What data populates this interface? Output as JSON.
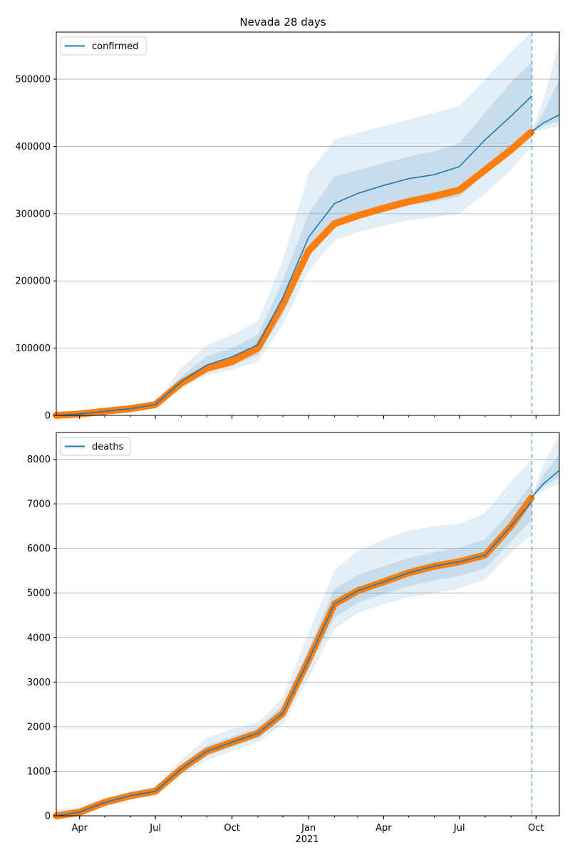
{
  "chart_data": {
    "type": "line",
    "title": "Nevada 28 days",
    "x_tick_labels": [
      "Apr",
      "Jul",
      "Oct",
      "Jan",
      "Apr",
      "Jul",
      "Oct"
    ],
    "x_tick_dates": [
      "2020-04-01",
      "2020-07-01",
      "2020-10-01",
      "2021-01-01",
      "2021-04-01",
      "2021-07-01",
      "2021-10-01"
    ],
    "x_year_label": "2021",
    "xlim": [
      "2020-03-04",
      "2021-10-29"
    ],
    "forecast_start": "2021-09-26",
    "grid": "horizontal",
    "legend_position": "top-left",
    "colors": {
      "model": "#1f77b4",
      "observed": "#ff7f0e",
      "band": "#1f77b4"
    },
    "panels": [
      {
        "series": [
          {
            "name": "confirmed",
            "kind": "model-line"
          },
          {
            "kind": "observed-points"
          }
        ],
        "ylim": [
          0,
          570000
        ],
        "y_ticks": [
          "0",
          "100000",
          "200000",
          "300000",
          "400000",
          "500000"
        ],
        "x": [
          "2020-03-04",
          "2020-04-01",
          "2020-05-01",
          "2020-06-01",
          "2020-07-01",
          "2020-08-01",
          "2020-09-01",
          "2020-10-01",
          "2020-11-01",
          "2020-12-01",
          "2021-01-01",
          "2021-02-01",
          "2021-03-01",
          "2021-04-01",
          "2021-05-01",
          "2021-06-01",
          "2021-07-01",
          "2021-08-01",
          "2021-09-01",
          "2021-09-26"
        ],
        "model": [
          0,
          2000,
          6000,
          10000,
          16000,
          50000,
          75000,
          87000,
          105000,
          175000,
          265000,
          315000,
          330000,
          342000,
          352000,
          358000,
          370000,
          410000,
          445000,
          475000
        ],
        "observed": [
          0,
          2000,
          6000,
          10000,
          16000,
          48000,
          70000,
          80000,
          100000,
          165000,
          245000,
          285000,
          297000,
          308000,
          318000,
          326000,
          335000,
          365000,
          395000,
          422000
        ],
        "band_outer": {
          "lower": [
            0,
            1800,
            5500,
            9000,
            14000,
            40000,
            60000,
            68000,
            80000,
            135000,
            215000,
            260000,
            273000,
            282000,
            290000,
            295000,
            300000,
            330000,
            365000,
            400000
          ],
          "upper": [
            0,
            2200,
            6500,
            11000,
            18000,
            70000,
            105000,
            120000,
            140000,
            230000,
            360000,
            410000,
            420000,
            430000,
            440000,
            450000,
            460000,
            500000,
            540000,
            570000
          ]
        },
        "band_inner": {
          "lower": [
            0,
            1900,
            5800,
            9500,
            15000,
            45000,
            65000,
            74000,
            90000,
            150000,
            235000,
            280000,
            293000,
            303000,
            312000,
            318000,
            325000,
            360000,
            395000,
            430000
          ],
          "upper": [
            0,
            2100,
            6200,
            10500,
            17000,
            58000,
            88000,
            100000,
            120000,
            200000,
            300000,
            355000,
            365000,
            375000,
            385000,
            393000,
            405000,
            450000,
            495000,
            525000
          ]
        },
        "forecast": {
          "x": [
            "2021-09-26",
            "2021-10-10",
            "2021-10-29"
          ],
          "model": [
            422000,
            435000,
            447000
          ],
          "lower_outer": [
            422000,
            425000,
            430000
          ],
          "upper_outer": [
            422000,
            470000,
            555000
          ],
          "lower_inner": [
            422000,
            430000,
            438000
          ],
          "upper_inner": [
            422000,
            450000,
            500000
          ]
        }
      },
      {
        "series": [
          {
            "name": "deaths",
            "kind": "model-line"
          },
          {
            "kind": "observed-points"
          }
        ],
        "ylim": [
          0,
          8600
        ],
        "y_ticks": [
          "0",
          "1000",
          "2000",
          "3000",
          "4000",
          "5000",
          "6000",
          "7000",
          "8000"
        ],
        "x": [
          "2020-03-04",
          "2020-04-01",
          "2020-05-01",
          "2020-06-01",
          "2020-07-01",
          "2020-08-01",
          "2020-09-01",
          "2020-10-01",
          "2020-11-01",
          "2020-12-01",
          "2021-01-01",
          "2021-02-01",
          "2021-03-01",
          "2021-04-01",
          "2021-05-01",
          "2021-06-01",
          "2021-07-01",
          "2021-08-01",
          "2021-09-01",
          "2021-09-26"
        ],
        "model": [
          0,
          80,
          300,
          450,
          550,
          1050,
          1450,
          1650,
          1850,
          2300,
          3500,
          4750,
          5050,
          5250,
          5450,
          5600,
          5700,
          5850,
          6500,
          7050
        ],
        "observed": [
          0,
          80,
          300,
          450,
          550,
          1050,
          1450,
          1650,
          1850,
          2300,
          3500,
          4750,
          5050,
          5250,
          5450,
          5600,
          5700,
          5850,
          6500,
          7150
        ],
        "band_outer": {
          "lower": [
            0,
            50,
            250,
            400,
            500,
            900,
            1250,
            1450,
            1650,
            2050,
            3100,
            4200,
            4550,
            4750,
            4900,
            5000,
            5100,
            5300,
            5900,
            6300
          ],
          "upper": [
            150,
            200,
            400,
            550,
            650,
            1250,
            1750,
            1950,
            2100,
            2650,
            4100,
            5500,
            5950,
            6200,
            6400,
            6500,
            6550,
            6800,
            7500,
            8000
          ]
        },
        "band_inner": {
          "lower": [
            0,
            70,
            280,
            430,
            530,
            980,
            1350,
            1550,
            1750,
            2180,
            3300,
            4450,
            4780,
            4980,
            5150,
            5280,
            5380,
            5550,
            6150,
            6650
          ],
          "upper": [
            90,
            120,
            340,
            490,
            590,
            1150,
            1580,
            1780,
            1980,
            2480,
            3750,
            5100,
            5400,
            5600,
            5780,
            5920,
            6020,
            6200,
            6850,
            7450
          ]
        },
        "forecast": {
          "x": [
            "2021-09-26",
            "2021-10-10",
            "2021-10-29"
          ],
          "model": [
            7150,
            7450,
            7750
          ],
          "lower_outer": [
            7150,
            7300,
            7450
          ],
          "upper_outer": [
            7150,
            7900,
            8550
          ],
          "lower_inner": [
            7150,
            7380,
            7600
          ],
          "upper_inner": [
            7150,
            7650,
            8100
          ]
        }
      }
    ]
  }
}
